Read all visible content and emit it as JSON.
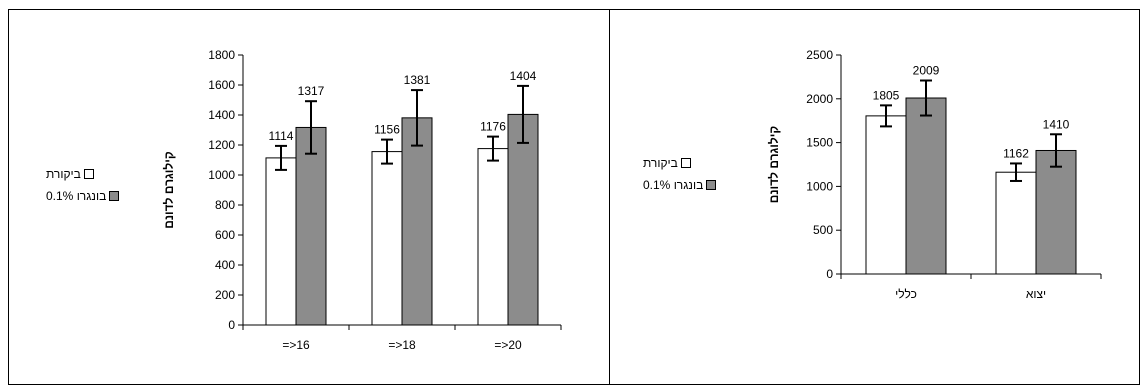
{
  "colors": {
    "control": "#ffffff",
    "treatment": "#8c8c8c",
    "stroke": "#000000"
  },
  "chart_data": [
    {
      "type": "bar",
      "categories": [
        "=>16",
        "=>18",
        "=>20"
      ],
      "series": [
        {
          "name": "ביקורת",
          "values": [
            1114,
            1156,
            1176
          ],
          "error": [
            80,
            80,
            80
          ],
          "labels": [
            "1114",
            "1156",
            "1176"
          ]
        },
        {
          "name": "בונגרו 0.1%",
          "values": [
            1317,
            1381,
            1404
          ],
          "error": [
            175,
            185,
            190
          ],
          "labels": [
            "1317",
            "1381",
            "1404"
          ]
        }
      ],
      "ylabel": "קילוגרם לדונם",
      "ylim": [
        0,
        1800
      ],
      "yticks": [
        0,
        200,
        400,
        600,
        800,
        1000,
        1200,
        1400,
        1600,
        1800
      ],
      "ytick_labels": [
        "0",
        "200",
        "400",
        "600",
        "800",
        "1000",
        "1200",
        "1400",
        "1600",
        "1800"
      ],
      "grid": false,
      "legend": "left"
    },
    {
      "type": "bar",
      "categories": [
        "כללי",
        "יצוא"
      ],
      "series": [
        {
          "name": "ביקורת",
          "values": [
            1805,
            1162
          ],
          "error": [
            120,
            100
          ],
          "labels": [
            "1805",
            "1162"
          ]
        },
        {
          "name": "בונגרו 0.1%",
          "values": [
            2009,
            1410
          ],
          "error": [
            200,
            185
          ],
          "labels": [
            "2009",
            "1410"
          ]
        }
      ],
      "ylabel": "קילוגרם לדונם",
      "ylim": [
        0,
        2500
      ],
      "yticks": [
        0,
        500,
        1000,
        1500,
        2000,
        2500
      ],
      "ytick_labels": [
        "0",
        "500",
        "1000",
        "1500",
        "2000",
        "2500"
      ],
      "grid": false,
      "legend": "left"
    }
  ]
}
